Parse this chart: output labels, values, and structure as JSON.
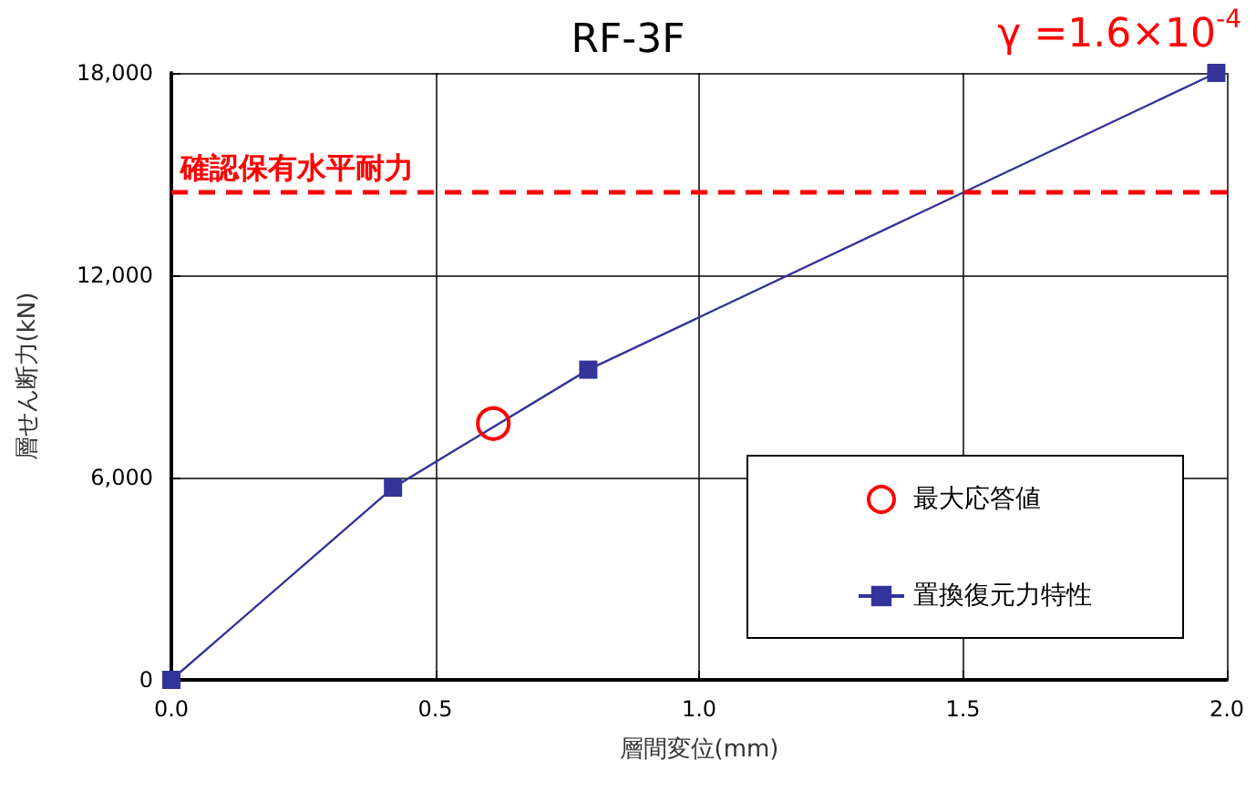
{
  "chart_data": {
    "type": "line",
    "title": "RF-3F",
    "xlabel": "層間変位(mm)",
    "ylabel": "層せん断力(kN)",
    "annotations": [
      "γ =1.6×10$^{-4}$"
    ],
    "series": [
      {
        "name": "置換復元力特性",
        "color": "#333399",
        "marker": "square",
        "x": [
          0,
          0.42,
          0.79,
          1.98
        ],
        "values": [
          0,
          5700,
          9200,
          18000
        ]
      },
      {
        "name": "最大応答値",
        "type": "scatter",
        "color": "#ff0000",
        "marker": "circle",
        "x": [
          0.61
        ],
        "values": [
          7600
        ]
      }
    ],
    "xlim": [
      0,
      2
    ],
    "xticks": [
      {
        "value": 0,
        "label": "0.0"
      },
      {
        "value": 0.5,
        "label": "0.5"
      },
      {
        "value": 1,
        "label": "1.0"
      },
      {
        "value": 1.5,
        "label": "1.5"
      },
      {
        "value": 2,
        "label": "2.0"
      }
    ],
    "ylim": [
      0,
      18000
    ],
    "yticks": [
      0,
      {
        "value": 6000,
        "label": "6,000"
      },
      {
        "value": 12000,
        "label": "12,000"
      },
      {
        "value": 18000,
        "label": "18,000"
      }
    ],
    "ref_lines": [
      {
        "axis": "y",
        "value": 14500,
        "label": "確認保有水平耐力",
        "color": "#ff0000",
        "line_style": "dashed"
      }
    ],
    "grid": true,
    "legend": "bottom right"
  }
}
